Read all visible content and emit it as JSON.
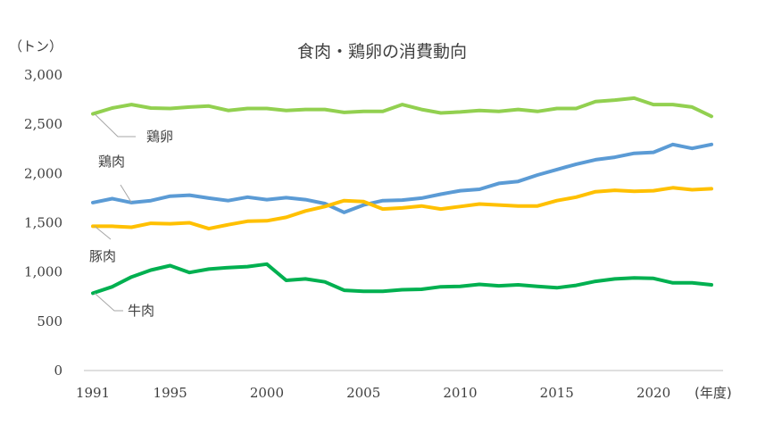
{
  "chart_data": {
    "type": "line",
    "title": "食肉・鶏卵の消費動向",
    "ylabel": "（トン）",
    "xlabel": "(年度)",
    "ylim": [
      0,
      3000
    ],
    "yticks": [
      0,
      500,
      1000,
      1500,
      2000,
      2500,
      3000
    ],
    "ytick_labels": [
      "0",
      "500",
      "1,000",
      "1,500",
      "2,000",
      "2,500",
      "3,000"
    ],
    "xticks": [
      1991,
      1995,
      2000,
      2005,
      2010,
      2015,
      2020
    ],
    "xtick_labels": [
      "1991",
      "1995",
      "2000",
      "2005",
      "2010",
      "2015",
      "2020"
    ],
    "x": [
      1991,
      1992,
      1993,
      1994,
      1995,
      1996,
      1997,
      1998,
      1999,
      2000,
      2001,
      2002,
      2003,
      2004,
      2005,
      2006,
      2007,
      2008,
      2009,
      2010,
      2011,
      2012,
      2013,
      2014,
      2015,
      2016,
      2017,
      2018,
      2019,
      2020,
      2021,
      2022,
      2023
    ],
    "grid": false,
    "legend": "inline-labels",
    "series": [
      {
        "name": "鶏卵",
        "color": "#92d050",
        "values": [
          2605,
          2665,
          2700,
          2665,
          2660,
          2675,
          2685,
          2640,
          2660,
          2660,
          2640,
          2650,
          2650,
          2620,
          2630,
          2630,
          2700,
          2650,
          2615,
          2625,
          2640,
          2630,
          2650,
          2630,
          2660,
          2660,
          2730,
          2745,
          2765,
          2700,
          2700,
          2675,
          2580
        ]
      },
      {
        "name": "鶏肉",
        "color": "#5b9bd5",
        "values": [
          1705,
          1745,
          1705,
          1725,
          1770,
          1780,
          1750,
          1725,
          1760,
          1735,
          1755,
          1735,
          1695,
          1605,
          1680,
          1725,
          1730,
          1750,
          1790,
          1825,
          1840,
          1900,
          1920,
          1985,
          2040,
          2095,
          2140,
          2165,
          2205,
          2215,
          2295,
          2255,
          2295
        ]
      },
      {
        "name": "豚肉",
        "color": "#ffc000",
        "values": [
          1465,
          1465,
          1455,
          1495,
          1490,
          1500,
          1440,
          1480,
          1515,
          1520,
          1555,
          1620,
          1665,
          1725,
          1715,
          1640,
          1650,
          1670,
          1640,
          1665,
          1690,
          1680,
          1670,
          1670,
          1725,
          1760,
          1815,
          1830,
          1820,
          1825,
          1855,
          1835,
          1845
        ]
      },
      {
        "name": "牛肉",
        "color": "#00b050",
        "values": [
          785,
          850,
          950,
          1020,
          1065,
          995,
          1030,
          1045,
          1055,
          1080,
          915,
          930,
          900,
          815,
          805,
          805,
          820,
          825,
          850,
          855,
          875,
          860,
          870,
          855,
          840,
          865,
          905,
          930,
          940,
          935,
          890,
          890,
          870
        ]
      }
    ]
  }
}
